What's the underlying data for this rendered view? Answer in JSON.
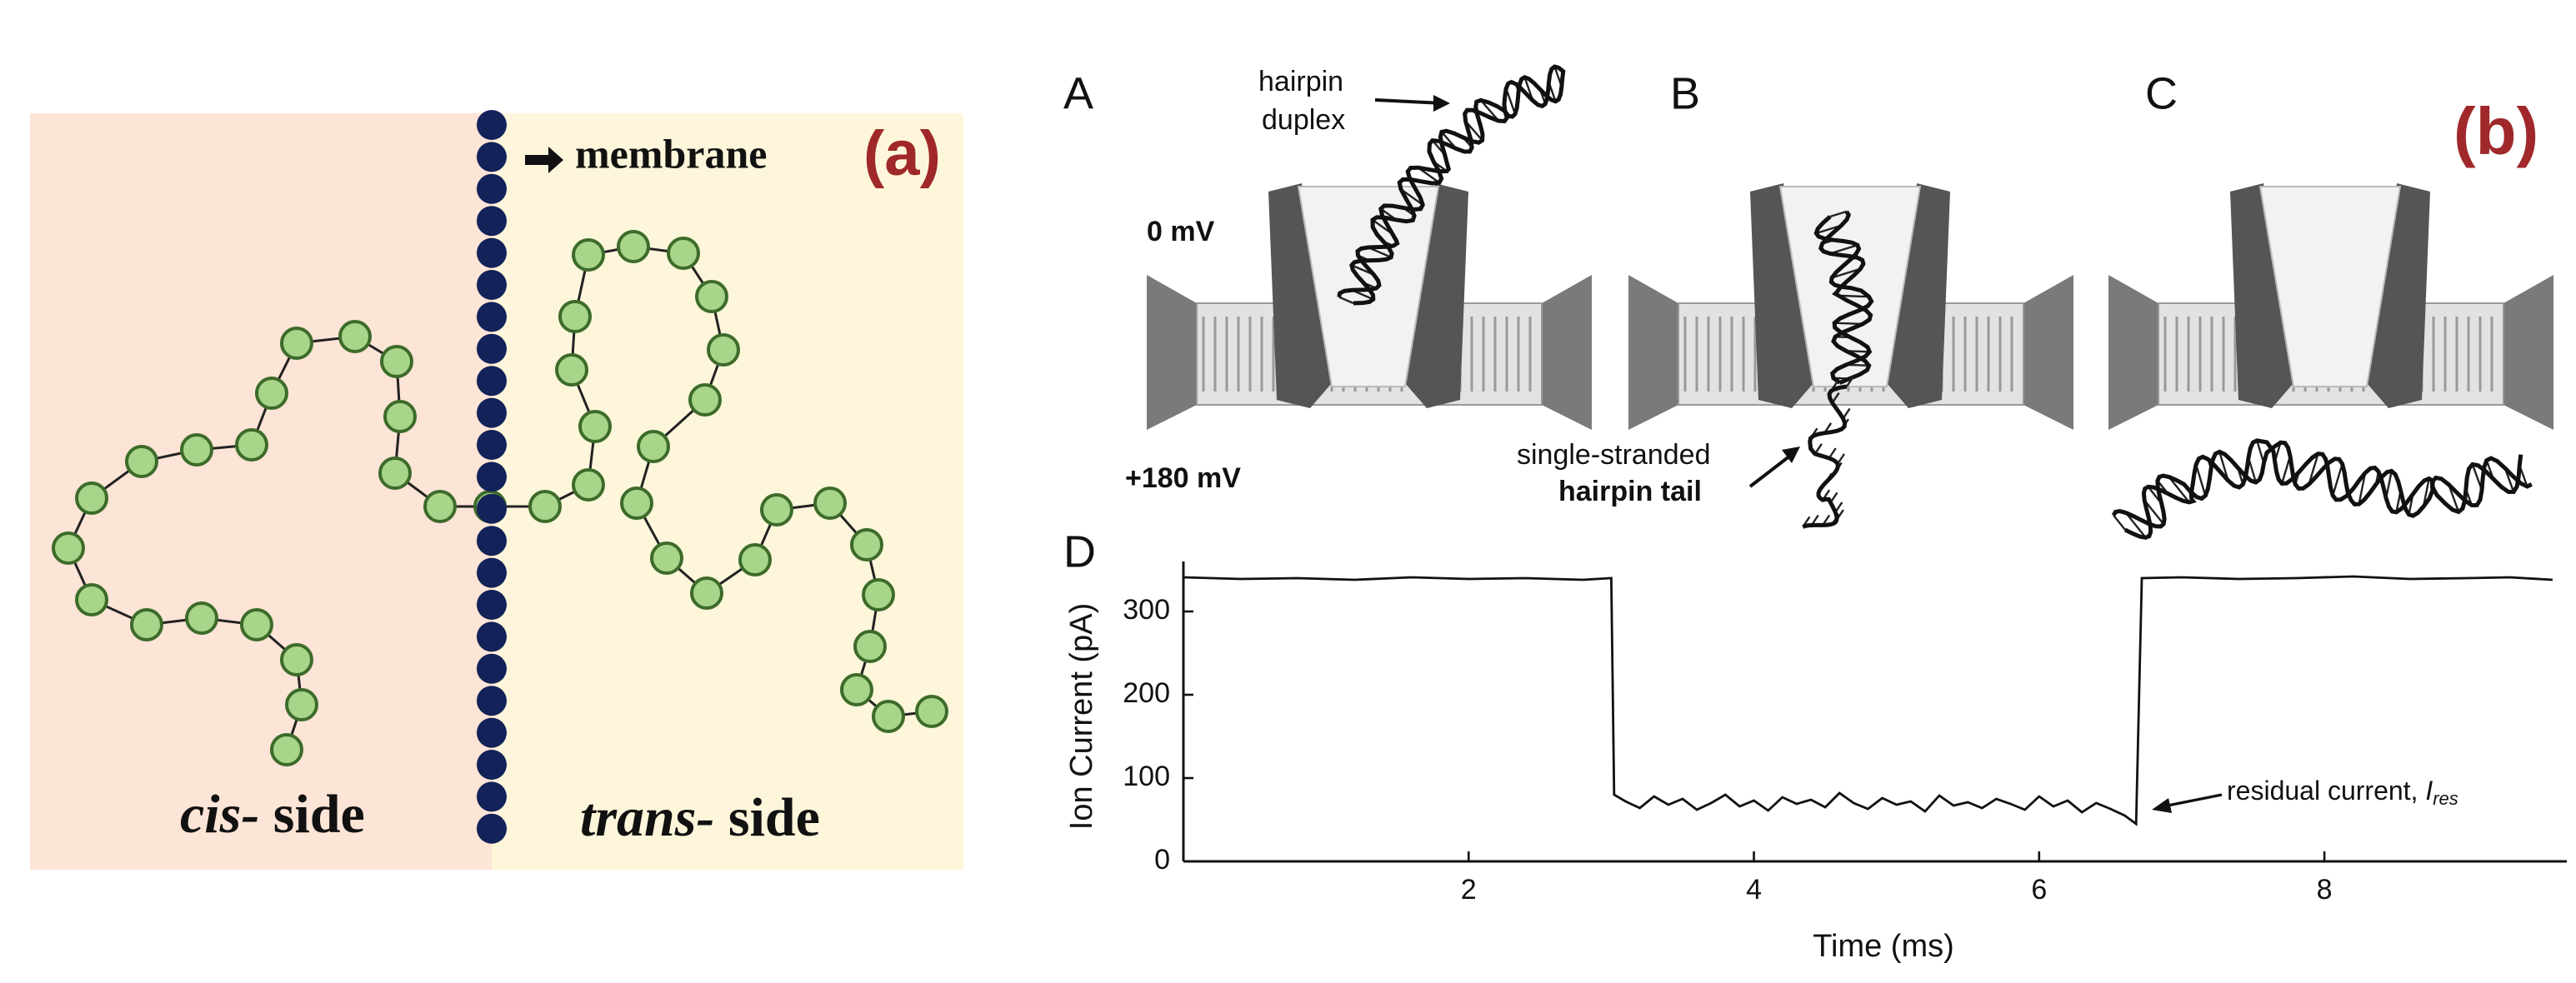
{
  "panel_a": {
    "label": "(a)",
    "membrane": "membrane",
    "cis": "cis-",
    "cis_side": "side",
    "trans": "trans-",
    "trans_side": "side"
  },
  "panel_b": {
    "label": "(b)",
    "A": "A",
    "B": "B",
    "C": "C",
    "D": "D",
    "hairpin": "hairpin",
    "duplex": "duplex",
    "zero_mv": "0 mV",
    "plus_mv": "+180 mV",
    "single_stranded": "single-stranded",
    "hairpin_tail": "hairpin tail",
    "residual": "residual current,",
    "residual_symbol": "I",
    "residual_subscript": "res"
  },
  "chart_data": {
    "type": "line",
    "xlabel": "Time (ms)",
    "ylabel": "Ion Current (pA)",
    "color": "#111111",
    "x": [
      0,
      0.4,
      0.8,
      1.2,
      1.6,
      2.0,
      2.4,
      2.8,
      3.0,
      3.02,
      3.1,
      3.2,
      3.3,
      3.4,
      3.5,
      3.6,
      3.7,
      3.8,
      3.9,
      4.0,
      4.1,
      4.2,
      4.3,
      4.4,
      4.5,
      4.6,
      4.7,
      4.8,
      4.9,
      5.0,
      5.1,
      5.2,
      5.3,
      5.4,
      5.5,
      5.6,
      5.7,
      5.8,
      5.9,
      6.0,
      6.1,
      6.2,
      6.3,
      6.4,
      6.5,
      6.6,
      6.68,
      6.72,
      7.0,
      7.4,
      7.8,
      8.2,
      8.6,
      9.0,
      9.3,
      9.6
    ],
    "values": [
      341,
      339,
      340,
      338,
      341,
      339,
      340,
      338,
      340,
      80,
      72,
      64,
      78,
      68,
      75,
      62,
      70,
      80,
      66,
      73,
      61,
      77,
      69,
      74,
      65,
      82,
      70,
      63,
      76,
      68,
      72,
      60,
      79,
      67,
      71,
      64,
      75,
      69,
      62,
      78,
      66,
      73,
      59,
      70,
      63,
      55,
      45,
      340,
      341,
      339,
      340,
      342,
      339,
      340,
      341,
      338
    ],
    "xlim": [
      0,
      9.7
    ],
    "ylim": [
      0,
      360
    ],
    "xticks": [
      2,
      4,
      6,
      8
    ],
    "yticks": [
      0,
      100,
      200,
      300
    ]
  }
}
